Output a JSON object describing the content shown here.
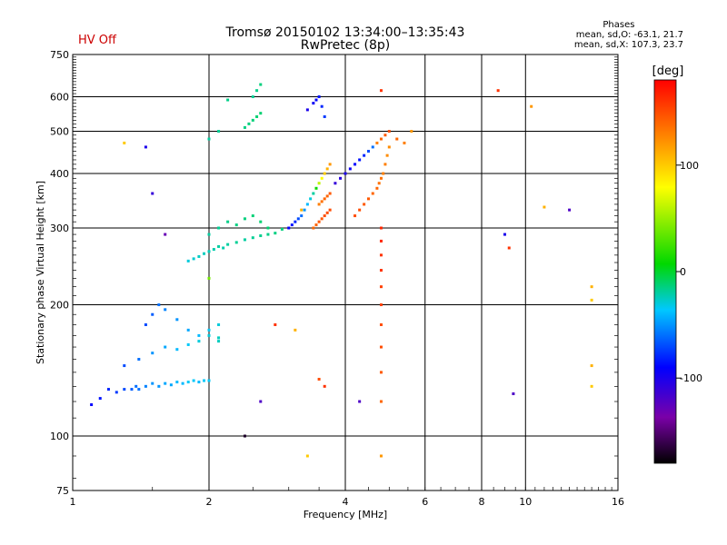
{
  "header": {
    "status": "HV Off",
    "title": "Tromsø 20150102 13:34:00–13:35:43",
    "subtitle": "RwPretec (8p)",
    "phases_title": "Phases",
    "phases_o": "mean, sd,O: -63.1, 21.7",
    "phases_x": "mean, sd,X: 107.3, 23.7"
  },
  "colors": {
    "status": "#cc0000",
    "grid": "#000000"
  },
  "chart_data": {
    "type": "scatter",
    "xlabel": "Frequency [MHz]",
    "ylabel": "Stationary phase Virtual Height [km]",
    "xscale": "log",
    "yscale": "log",
    "xlim": [
      1,
      16
    ],
    "ylim": [
      75,
      750
    ],
    "xticks": [
      1,
      2,
      4,
      6,
      8,
      10,
      16
    ],
    "xtick_labels": [
      "1",
      "2",
      "4",
      "6",
      "8",
      "10",
      "16"
    ],
    "yticks": [
      75,
      100,
      200,
      300,
      400,
      500,
      600,
      750
    ],
    "ytick_labels": [
      "75",
      "100",
      "200",
      "300",
      "400",
      "500",
      "600",
      "750"
    ],
    "grid": true,
    "colorbar": {
      "label": "[deg]",
      "range": [
        -180,
        180
      ],
      "ticks": [
        100,
        0,
        -100
      ],
      "tick_labels": [
        "100",
        "0",
        "-100"
      ]
    },
    "series": [
      {
        "x": [
          1.1,
          1.15,
          1.2,
          1.25,
          1.3,
          1.35,
          1.38,
          1.4,
          1.45,
          1.5,
          1.55,
          1.6,
          1.65,
          1.7,
          1.75,
          1.8,
          1.85,
          1.9,
          1.95,
          2.0,
          1.3,
          1.4,
          1.5,
          1.6,
          1.7,
          1.8,
          1.9,
          2.0,
          2.1,
          1.45,
          1.5,
          1.55,
          1.6,
          1.7,
          1.8,
          1.9,
          2.0,
          2.1,
          2.1
        ],
        "y": [
          118,
          122,
          128,
          126,
          128,
          128,
          130,
          128,
          130,
          132,
          130,
          132,
          131,
          133,
          132,
          133,
          134,
          133,
          134,
          134,
          145,
          150,
          155,
          160,
          158,
          162,
          165,
          170,
          168,
          180,
          190,
          200,
          195,
          185,
          175,
          170,
          175,
          180,
          165
        ],
        "phase": [
          -90,
          -85,
          -80,
          -75,
          -70,
          -65,
          -60,
          -60,
          -55,
          -50,
          -50,
          -45,
          -45,
          -40,
          -40,
          -35,
          -35,
          -40,
          -35,
          -35,
          -70,
          -60,
          -50,
          -45,
          -40,
          -35,
          -30,
          -30,
          -25,
          -70,
          -65,
          -60,
          -55,
          -50,
          -45,
          -40,
          -35,
          -30,
          -25
        ]
      },
      {
        "x": [
          1.8,
          1.85,
          1.9,
          1.95,
          2.0,
          2.05,
          2.1,
          2.15,
          2.2,
          2.3,
          2.4,
          2.5,
          2.6,
          2.7,
          2.8,
          2.9,
          2.0,
          2.1,
          2.2,
          2.3,
          2.4,
          2.5,
          2.6,
          2.7
        ],
        "y": [
          252,
          255,
          258,
          262,
          265,
          268,
          272,
          270,
          275,
          278,
          282,
          285,
          288,
          290,
          292,
          298,
          290,
          300,
          310,
          305,
          315,
          320,
          310,
          300
        ],
        "phase": [
          -30,
          -28,
          -26,
          -25,
          -24,
          -22,
          -20,
          -22,
          -20,
          -18,
          -20,
          -18,
          -17,
          -16,
          -15,
          -14,
          -20,
          -18,
          -16,
          -15,
          -14,
          -13,
          -12,
          -12
        ]
      },
      {
        "x": [
          2.0,
          2.1,
          2.2,
          2.4,
          2.45,
          2.5,
          2.55,
          2.6,
          2.5,
          2.55,
          2.6
        ],
        "y": [
          480,
          500,
          590,
          510,
          520,
          530,
          540,
          550,
          600,
          620,
          640
        ],
        "phase": [
          -20,
          -18,
          -16,
          -15,
          -14,
          -13,
          -12,
          -12,
          -18,
          -16,
          -14
        ]
      },
      {
        "x": [
          3.0,
          3.05,
          3.1,
          3.15,
          3.2,
          3.25,
          3.3,
          3.35,
          3.4,
          3.45,
          3.5,
          3.55,
          3.6,
          3.65,
          3.7
        ],
        "y": [
          300,
          305,
          310,
          315,
          320,
          330,
          340,
          350,
          360,
          370,
          380,
          390,
          400,
          410,
          420
        ],
        "phase": [
          -90,
          -85,
          -80,
          -70,
          -60,
          -50,
          -40,
          -30,
          -20,
          10,
          60,
          80,
          100,
          110,
          120
        ]
      },
      {
        "x": [
          3.4,
          3.45,
          3.5,
          3.55,
          3.6,
          3.65,
          3.7,
          3.5,
          3.55,
          3.6,
          3.65,
          3.7
        ],
        "y": [
          300,
          305,
          310,
          315,
          320,
          325,
          330,
          340,
          345,
          350,
          355,
          360
        ],
        "phase": [
          140,
          140,
          145,
          145,
          150,
          150,
          150,
          130,
          135,
          140,
          140,
          145
        ]
      },
      {
        "x": [
          3.3,
          3.4,
          3.45,
          3.5,
          3.55,
          3.6
        ],
        "y": [
          560,
          580,
          590,
          600,
          570,
          540
        ],
        "phase": [
          -100,
          -95,
          -90,
          -85,
          -80,
          -75
        ]
      },
      {
        "x": [
          3.8,
          3.9,
          4.0,
          4.1,
          4.2,
          4.3,
          4.4,
          4.5,
          4.6,
          4.7,
          4.8,
          4.9,
          5.0,
          5.2,
          5.4,
          5.6
        ],
        "y": [
          380,
          390,
          400,
          410,
          420,
          430,
          440,
          450,
          460,
          470,
          480,
          490,
          500,
          480,
          470,
          500
        ],
        "phase": [
          -110,
          -105,
          -100,
          -95,
          -90,
          -85,
          -80,
          -70,
          -60,
          130,
          140,
          145,
          150,
          140,
          130,
          120
        ]
      },
      {
        "x": [
          4.2,
          4.3,
          4.4,
          4.5,
          4.6,
          4.7,
          4.75,
          4.8,
          4.85,
          4.9,
          4.95,
          5.0
        ],
        "y": [
          320,
          330,
          340,
          350,
          360,
          370,
          380,
          390,
          400,
          420,
          440,
          460
        ],
        "phase": [
          150,
          150,
          145,
          145,
          140,
          140,
          135,
          135,
          130,
          130,
          125,
          125
        ]
      },
      {
        "x": [
          4.8,
          4.8,
          4.8,
          4.8,
          4.8,
          4.8,
          4.8,
          4.8,
          4.8,
          4.8,
          4.8
        ],
        "y": [
          620,
          300,
          280,
          260,
          240,
          220,
          200,
          180,
          160,
          140,
          120
        ],
        "phase": [
          160,
          165,
          165,
          160,
          160,
          155,
          155,
          150,
          150,
          145,
          140
        ]
      },
      {
        "x": [
          1.3,
          1.45,
          1.5,
          1.6,
          2.0,
          2.4,
          2.6,
          2.8,
          3.1,
          3.2,
          3.3,
          3.5,
          3.6,
          4.3,
          4.8,
          8.7,
          9.0,
          9.2,
          9.4,
          10.3,
          11.0,
          12.5,
          14.0,
          14.0,
          14.0,
          14.0
        ],
        "y": [
          470,
          460,
          360,
          290,
          230,
          100,
          120,
          180,
          175,
          330,
          90,
          135,
          130,
          120,
          90,
          620,
          290,
          270,
          125,
          570,
          335,
          330,
          220,
          205,
          145,
          130
        ],
        "phase": [
          100,
          -100,
          -110,
          -130,
          40,
          -170,
          -120,
          160,
          110,
          110,
          100,
          150,
          160,
          -120,
          120,
          160,
          -100,
          160,
          -120,
          120,
          110,
          -120,
          110,
          100,
          110,
          100
        ]
      }
    ]
  }
}
